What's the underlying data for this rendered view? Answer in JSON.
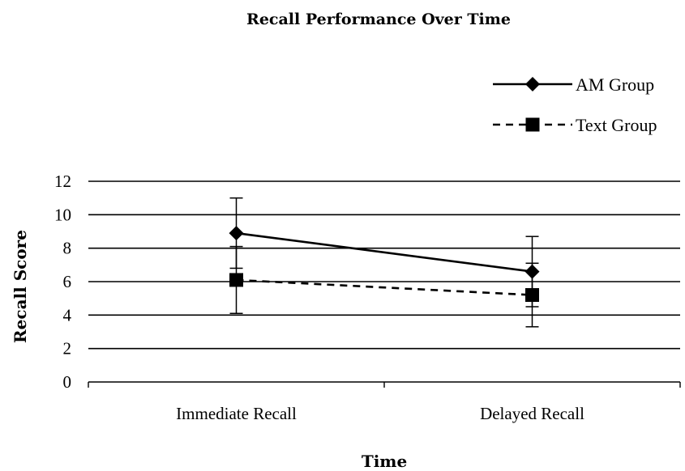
{
  "chart_data": {
    "type": "line",
    "title": "Recall Performance Over Time",
    "xlabel": "Time",
    "ylabel": "Recall Score",
    "categories": [
      "Immediate Recall",
      "Delayed Recall"
    ],
    "ylim": [
      0,
      12
    ],
    "yticks": [
      0,
      2,
      4,
      6,
      8,
      10,
      12
    ],
    "grid": true,
    "legend_position": "top-right",
    "series": [
      {
        "name": "AM Group",
        "values": [
          8.9,
          6.6
        ],
        "error": [
          2.1,
          2.1
        ],
        "marker": "diamond",
        "line_style": "solid",
        "color": "#000000"
      },
      {
        "name": "Text Group",
        "values": [
          6.1,
          5.2
        ],
        "error": [
          2.0,
          1.9
        ],
        "marker": "square",
        "line_style": "dashed",
        "color": "#000000"
      }
    ]
  }
}
